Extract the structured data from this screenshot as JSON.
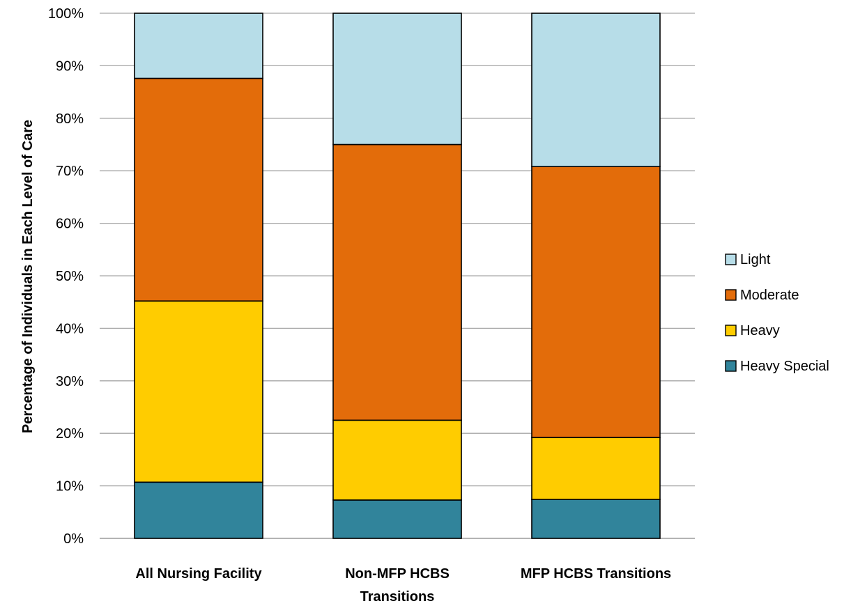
{
  "chart_data": {
    "type": "bar",
    "stacked": true,
    "title": "",
    "xlabel": "",
    "ylabel": "Percentage of Individuals in Each Level of Care",
    "ylim": [
      0,
      100
    ],
    "yticks": [
      "0%",
      "10%",
      "20%",
      "30%",
      "40%",
      "50%",
      "60%",
      "70%",
      "80%",
      "90%",
      "100%"
    ],
    "grid": true,
    "legend_position": "right",
    "categories": [
      [
        "All Nursing Facility"
      ],
      [
        "Non-MFP HCBS",
        "Transitions"
      ],
      [
        "MFP HCBS Transitions"
      ]
    ],
    "series": [
      {
        "name": "Heavy Special",
        "color": "#31849b",
        "values": [
          10.7,
          7.3,
          7.4
        ]
      },
      {
        "name": "Heavy",
        "color": "#ffcc00",
        "values": [
          34.5,
          15.2,
          11.8
        ]
      },
      {
        "name": "Moderate",
        "color": "#e36c0a",
        "values": [
          42.4,
          52.5,
          51.6
        ]
      },
      {
        "name": "Light",
        "color": "#b7dde8",
        "values": [
          12.4,
          25.0,
          29.2
        ]
      }
    ],
    "legend_order": [
      "Light",
      "Moderate",
      "Heavy",
      "Heavy Special"
    ]
  }
}
